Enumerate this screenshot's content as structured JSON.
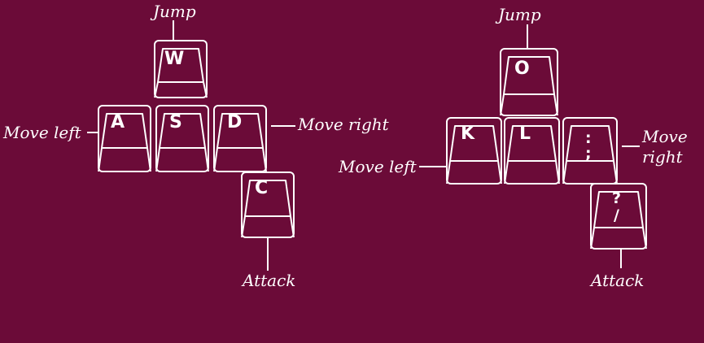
{
  "colors": {
    "background": "#6b0b38",
    "line": "#ffffff"
  },
  "layouts": [
    {
      "keys": {
        "up": "W",
        "left": "A",
        "center": "S",
        "right": "D",
        "down": "C"
      },
      "actions": {
        "up": "Jump",
        "left": "Move left",
        "right": "Move right",
        "down": "Attack"
      }
    },
    {
      "keys": {
        "up": "O",
        "left": "K",
        "center": "L",
        "right_top": ":",
        "right_bottom": ";",
        "down_top": "?",
        "down_bottom": "/"
      },
      "actions": {
        "up": "Jump",
        "left": "Move left",
        "right_line1": "Move",
        "right_line2": "right",
        "down": "Attack"
      }
    }
  ]
}
